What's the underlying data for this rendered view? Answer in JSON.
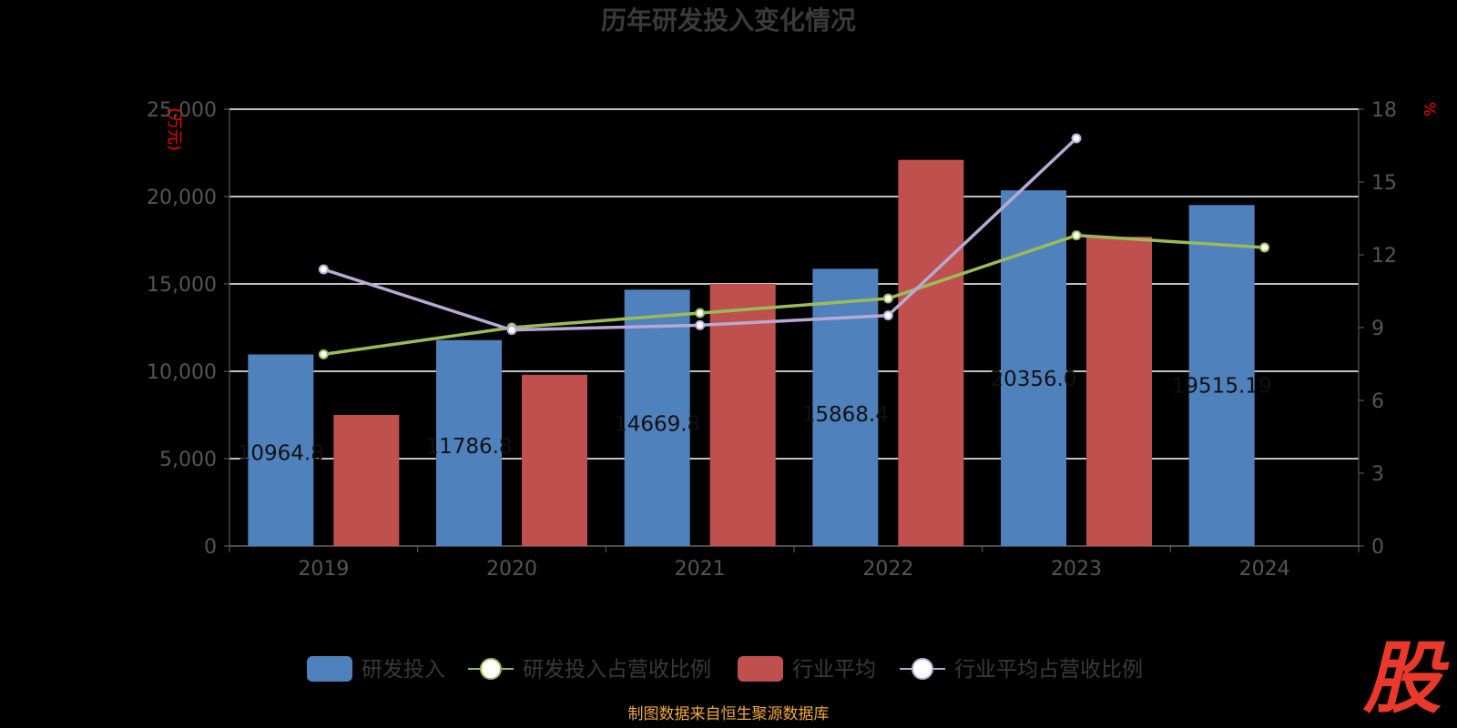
{
  "chart_data": {
    "type": "bar",
    "title": "历年研发投入变化情况",
    "categories": [
      "2019",
      "2020",
      "2021",
      "2022",
      "2023",
      "2024"
    ],
    "y_left": {
      "unit_label": "(万元)",
      "ylim": [
        0,
        25000
      ],
      "ticks": [
        "0",
        "5,000",
        "10,000",
        "15,000",
        "20,000",
        "25,000"
      ],
      "tick_values": [
        0,
        5000,
        10000,
        15000,
        20000,
        25000
      ]
    },
    "y_right": {
      "unit_label": "%",
      "ylim": [
        0,
        18
      ],
      "ticks": [
        "0",
        "3",
        "6",
        "9",
        "12",
        "15",
        "18"
      ],
      "tick_values": [
        0,
        3,
        6,
        9,
        12,
        15,
        18
      ]
    },
    "series": [
      {
        "name": "研发投入",
        "type": "bar",
        "axis": "left",
        "color": "#4f81bd",
        "values": [
          10964.8,
          11786.8,
          14669.8,
          15868.4,
          20356.0,
          19515.19
        ],
        "data_labels": [
          "10964.8",
          "11786.8",
          "14669.8",
          "15868.4",
          "20356.0",
          "19515.19"
        ]
      },
      {
        "name": "研发投入占营收比例",
        "type": "line",
        "axis": "right",
        "color": "#9bbb59",
        "values": [
          7.9,
          9.0,
          9.6,
          10.2,
          12.8,
          12.3
        ]
      },
      {
        "name": "行业平均",
        "type": "bar",
        "axis": "left",
        "color": "#c0504d",
        "values": [
          7500,
          9800,
          15000,
          22100,
          17700,
          null
        ]
      },
      {
        "name": "行业平均占营收比例",
        "type": "line",
        "axis": "right",
        "color": "#b8a9d4",
        "values": [
          11.4,
          8.9,
          9.1,
          9.5,
          16.8,
          null
        ]
      }
    ],
    "grid": true,
    "legend_position": "bottom"
  },
  "footer": {
    "source": "制图数据来自恒生聚源数据库"
  },
  "logo": {
    "text": "股"
  },
  "colors": {
    "title": "#3a3a3a",
    "axis_text": "#555555",
    "unit": "#ff0000",
    "grid": "#ffffff",
    "footer": "#f2a93b",
    "logo": "#e8392a"
  }
}
